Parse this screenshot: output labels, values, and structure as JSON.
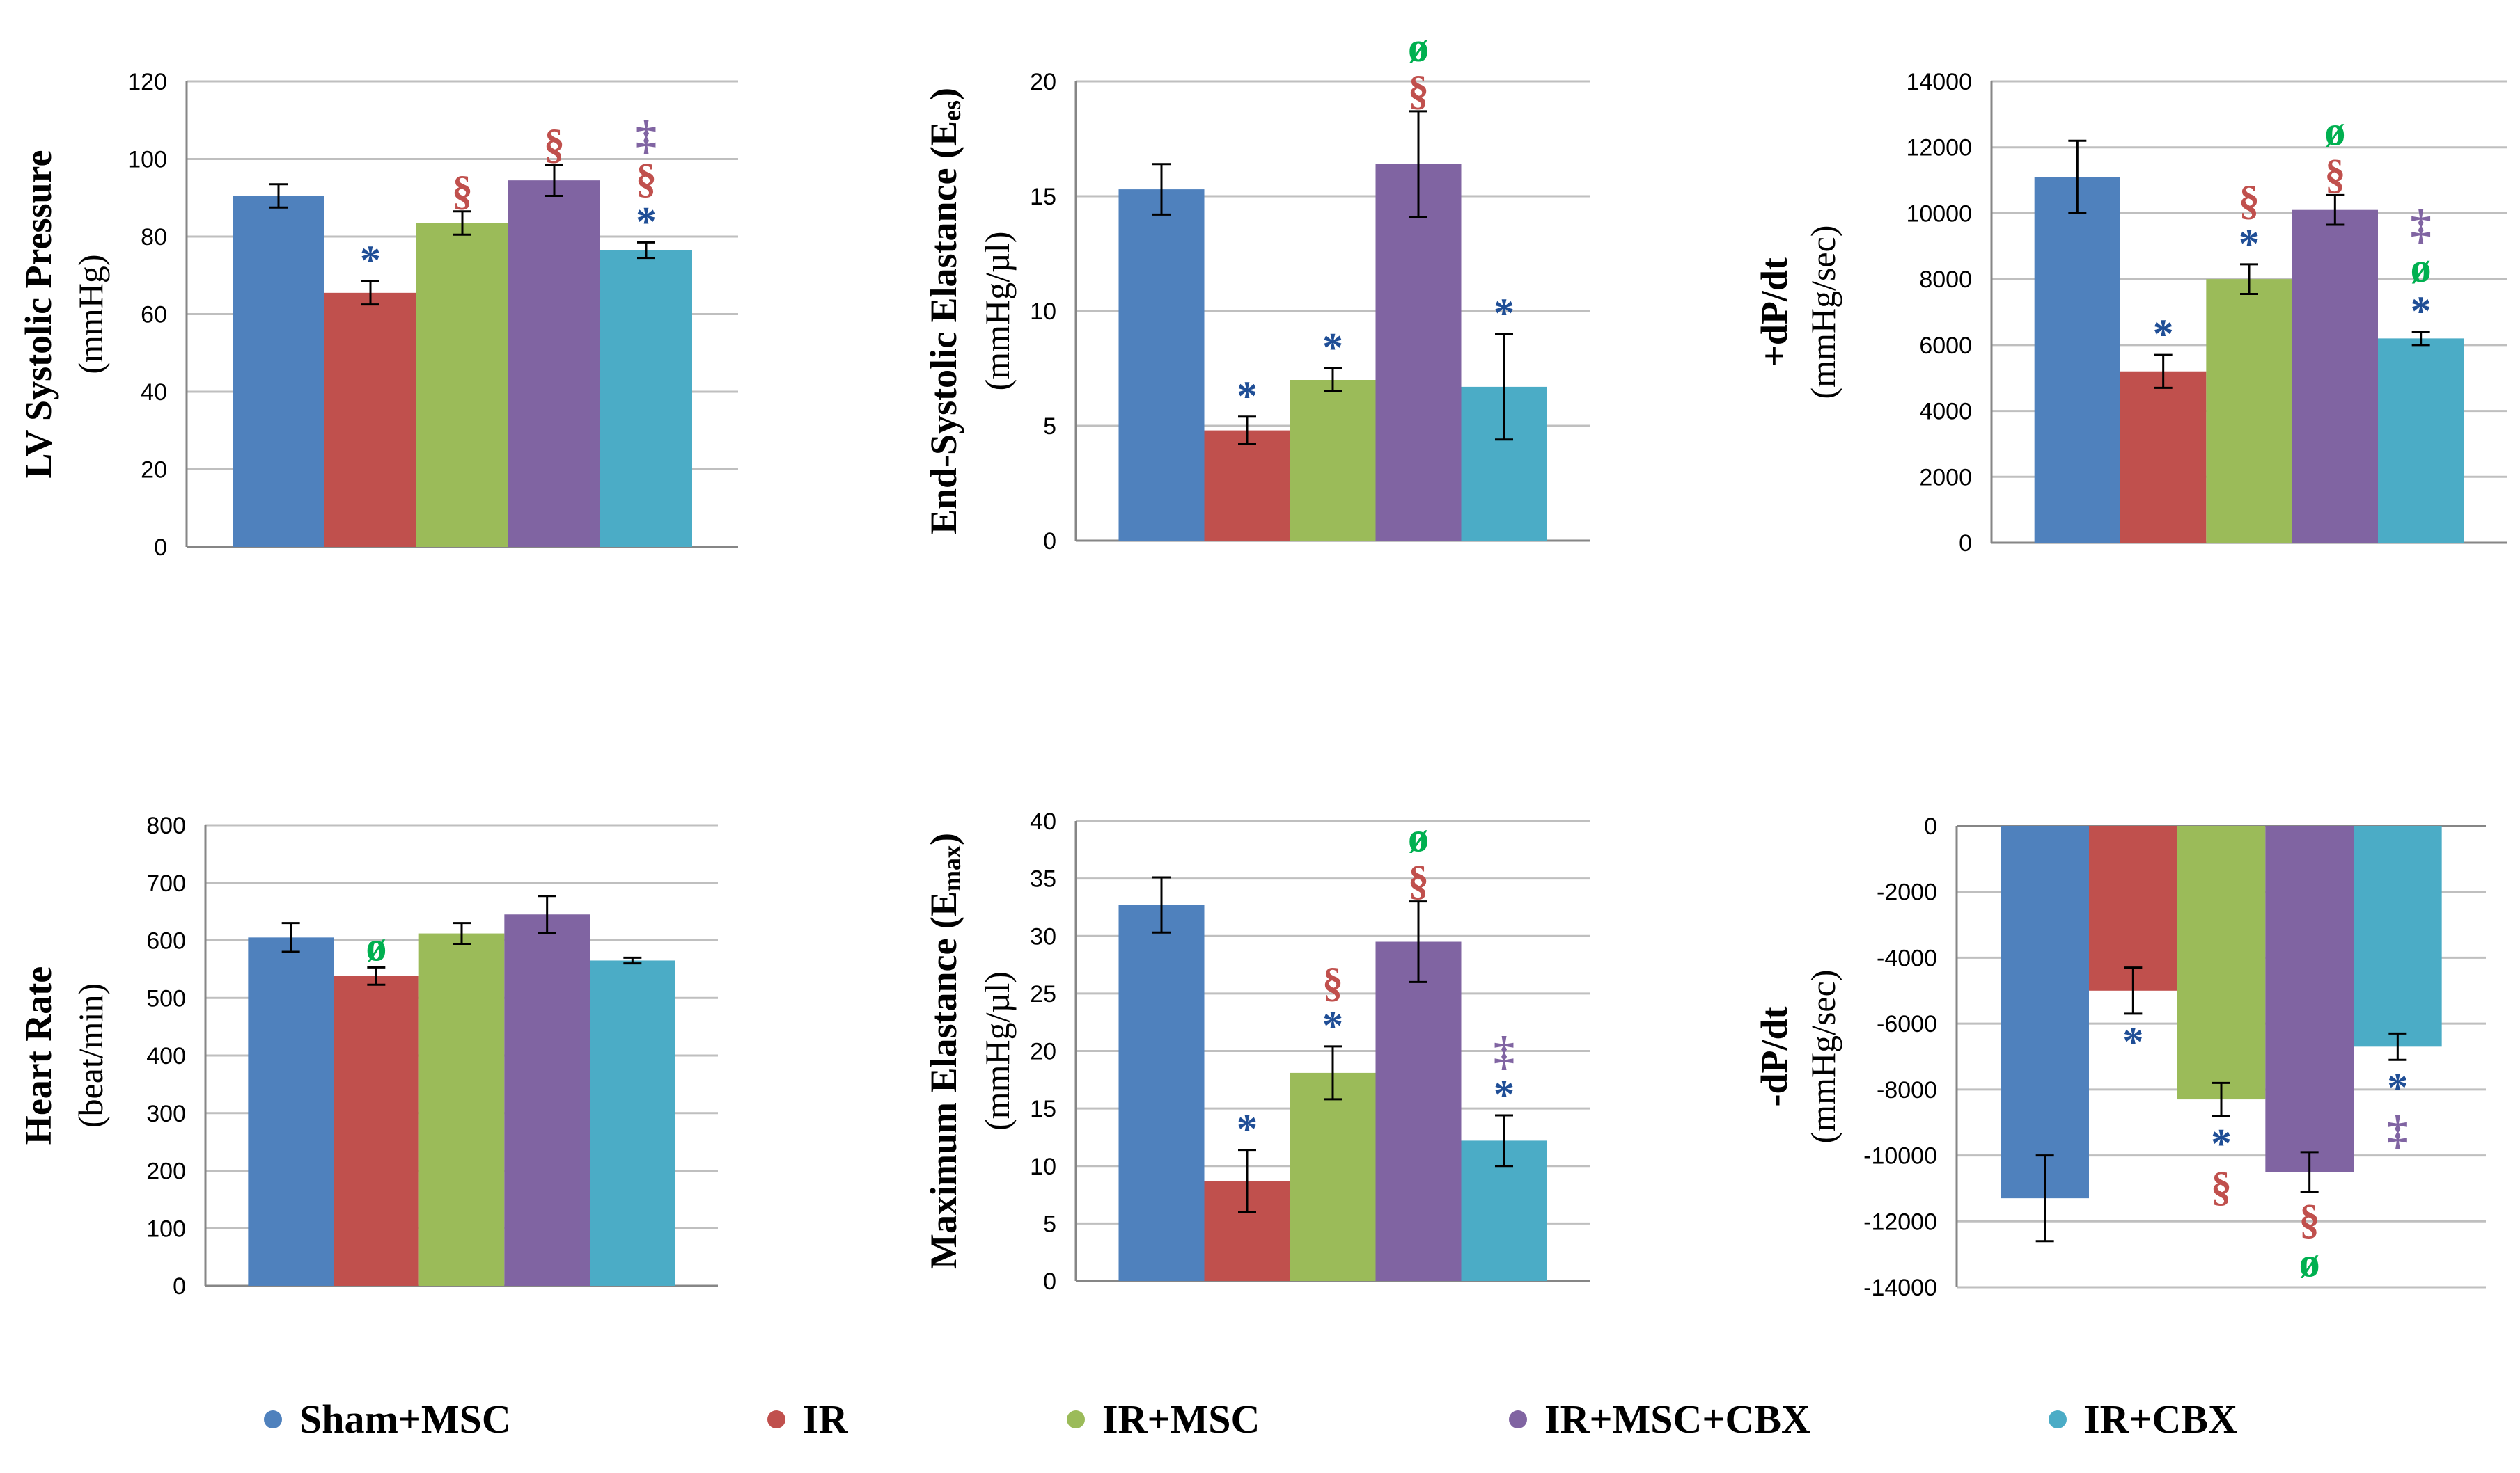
{
  "groups": [
    "Sham+MSC",
    "IR",
    "IR+MSC",
    "IR+MSC+CBX",
    "IR+CBX"
  ],
  "colors": [
    "#4F81BD",
    "#C0504D",
    "#9BBB59",
    "#8064A2",
    "#4BACC6"
  ],
  "symbol_colors": {
    "*": "#1F4E96",
    "§": "#C0504D",
    "‡": "#8064A2",
    "ø": "#00B050"
  },
  "chart_data": [
    {
      "type": "bar",
      "title": "",
      "ylabel": "LV Systolic Pressure",
      "yunit": "(mmHg)",
      "ylim": [
        0,
        120
      ],
      "yticks": [
        0,
        20,
        40,
        60,
        80,
        100,
        120
      ],
      "yticklabels": [
        "0",
        "20",
        "40",
        "60",
        "80",
        "100",
        "120"
      ],
      "grid": true,
      "categories": [
        "Sham+MSC",
        "IR",
        "IR+MSC",
        "IR+MSC+CBX",
        "IR+CBX"
      ],
      "values": [
        90.5,
        65.5,
        83.5,
        94.5,
        76.5
      ],
      "errors": [
        3,
        3,
        3,
        4,
        2
      ],
      "annotations": [
        [],
        [
          "*"
        ],
        [
          "§"
        ],
        [
          "§"
        ],
        [
          "*",
          "§",
          "‡"
        ]
      ]
    },
    {
      "type": "bar",
      "title": "",
      "ylabel": "End-Systolic Elastance (E",
      "ylabel_sub": "es",
      "ylabel_suffix": ")",
      "yunit": "(mmHg/µl)",
      "ylim": [
        0,
        20
      ],
      "yticks": [
        0,
        5,
        10,
        15,
        20
      ],
      "yticklabels": [
        "0",
        "5",
        "10",
        "15",
        "20"
      ],
      "grid": true,
      "categories": [
        "Sham+MSC",
        "IR",
        "IR+MSC",
        "IR+MSC+CBX",
        "IR+CBX"
      ],
      "values": [
        15.3,
        4.8,
        7.0,
        16.4,
        6.7
      ],
      "errors": [
        1.1,
        0.6,
        0.5,
        2.3,
        2.3
      ],
      "annotations": [
        [],
        [
          "*"
        ],
        [
          "*"
        ],
        [
          "§",
          "ø"
        ],
        [
          "*"
        ]
      ]
    },
    {
      "type": "bar",
      "title": "",
      "ylabel": "+dP/dt",
      "yunit": "(mmHg/sec)",
      "ylim": [
        0,
        14000
      ],
      "yticks": [
        0,
        2000,
        4000,
        6000,
        8000,
        10000,
        12000,
        14000
      ],
      "yticklabels": [
        "0",
        "2000",
        "4000",
        "6000",
        "8000",
        "10000",
        "12000",
        "14000"
      ],
      "grid": true,
      "categories": [
        "Sham+MSC",
        "IR",
        "IR+MSC",
        "IR+MSC+CBX",
        "IR+CBX"
      ],
      "values": [
        11100,
        5200,
        8000,
        10100,
        6200
      ],
      "errors": [
        1100,
        500,
        450,
        450,
        200
      ],
      "annotations": [
        [],
        [
          "*"
        ],
        [
          "*",
          "§"
        ],
        [
          "§",
          "ø"
        ],
        [
          "*",
          "ø",
          "‡"
        ]
      ]
    },
    {
      "type": "bar",
      "title": "",
      "ylabel": "Heart Rate",
      "yunit": "(beat/min)",
      "ylim": [
        0,
        800
      ],
      "yticks": [
        0,
        100,
        200,
        300,
        400,
        500,
        600,
        700,
        800
      ],
      "yticklabels": [
        "0",
        "100",
        "200",
        "300",
        "400",
        "500",
        "600",
        "700",
        "800"
      ],
      "grid": true,
      "categories": [
        "Sham+MSC",
        "IR",
        "IR+MSC",
        "IR+MSC+CBX",
        "IR+CBX"
      ],
      "values": [
        605,
        538,
        612,
        645,
        565
      ],
      "errors": [
        25,
        15,
        18,
        32,
        5
      ],
      "annotations": [
        [],
        [
          "ø"
        ],
        [],
        [],
        []
      ]
    },
    {
      "type": "bar",
      "title": "",
      "ylabel": "Maximum Elastance (E",
      "ylabel_sub": "max",
      "ylabel_suffix": ")",
      "yunit": "(mmHg/µl)",
      "ylim": [
        0,
        40
      ],
      "yticks": [
        0,
        5,
        10,
        15,
        20,
        25,
        30,
        35,
        40
      ],
      "yticklabels": [
        "0",
        "5",
        "10",
        "15",
        "20",
        "25",
        "30",
        "35",
        "40"
      ],
      "grid": true,
      "categories": [
        "Sham+MSC",
        "IR",
        "IR+MSC",
        "IR+MSC+CBX",
        "IR+CBX"
      ],
      "values": [
        32.7,
        8.7,
        18.1,
        29.5,
        12.2
      ],
      "errors": [
        2.4,
        2.7,
        2.3,
        3.5,
        2.2
      ],
      "annotations": [
        [],
        [
          "*"
        ],
        [
          "*",
          "§"
        ],
        [
          "§",
          "ø"
        ],
        [
          "*",
          "‡"
        ]
      ]
    },
    {
      "type": "bar",
      "title": "",
      "ylabel": "-dP/dt",
      "yunit": "(mmHg/sec)",
      "ylim": [
        -14000,
        0
      ],
      "yticks": [
        -14000,
        -12000,
        -10000,
        -8000,
        -6000,
        -4000,
        -2000,
        0
      ],
      "yticklabels": [
        "-14000",
        "-12000",
        "-10000",
        "-8000",
        "-6000",
        "-4000",
        "-2000",
        "0"
      ],
      "grid": true,
      "negative": true,
      "categories": [
        "Sham+MSC",
        "IR",
        "IR+MSC",
        "IR+MSC+CBX",
        "IR+CBX"
      ],
      "values": [
        -11300,
        -5000,
        -8300,
        -10500,
        -6700
      ],
      "errors": [
        1300,
        700,
        500,
        600,
        400
      ],
      "annotations": [
        [],
        [
          "*"
        ],
        [
          "*",
          "§"
        ],
        [
          "§",
          "ø"
        ],
        [
          "*",
          "‡"
        ]
      ]
    }
  ]
}
